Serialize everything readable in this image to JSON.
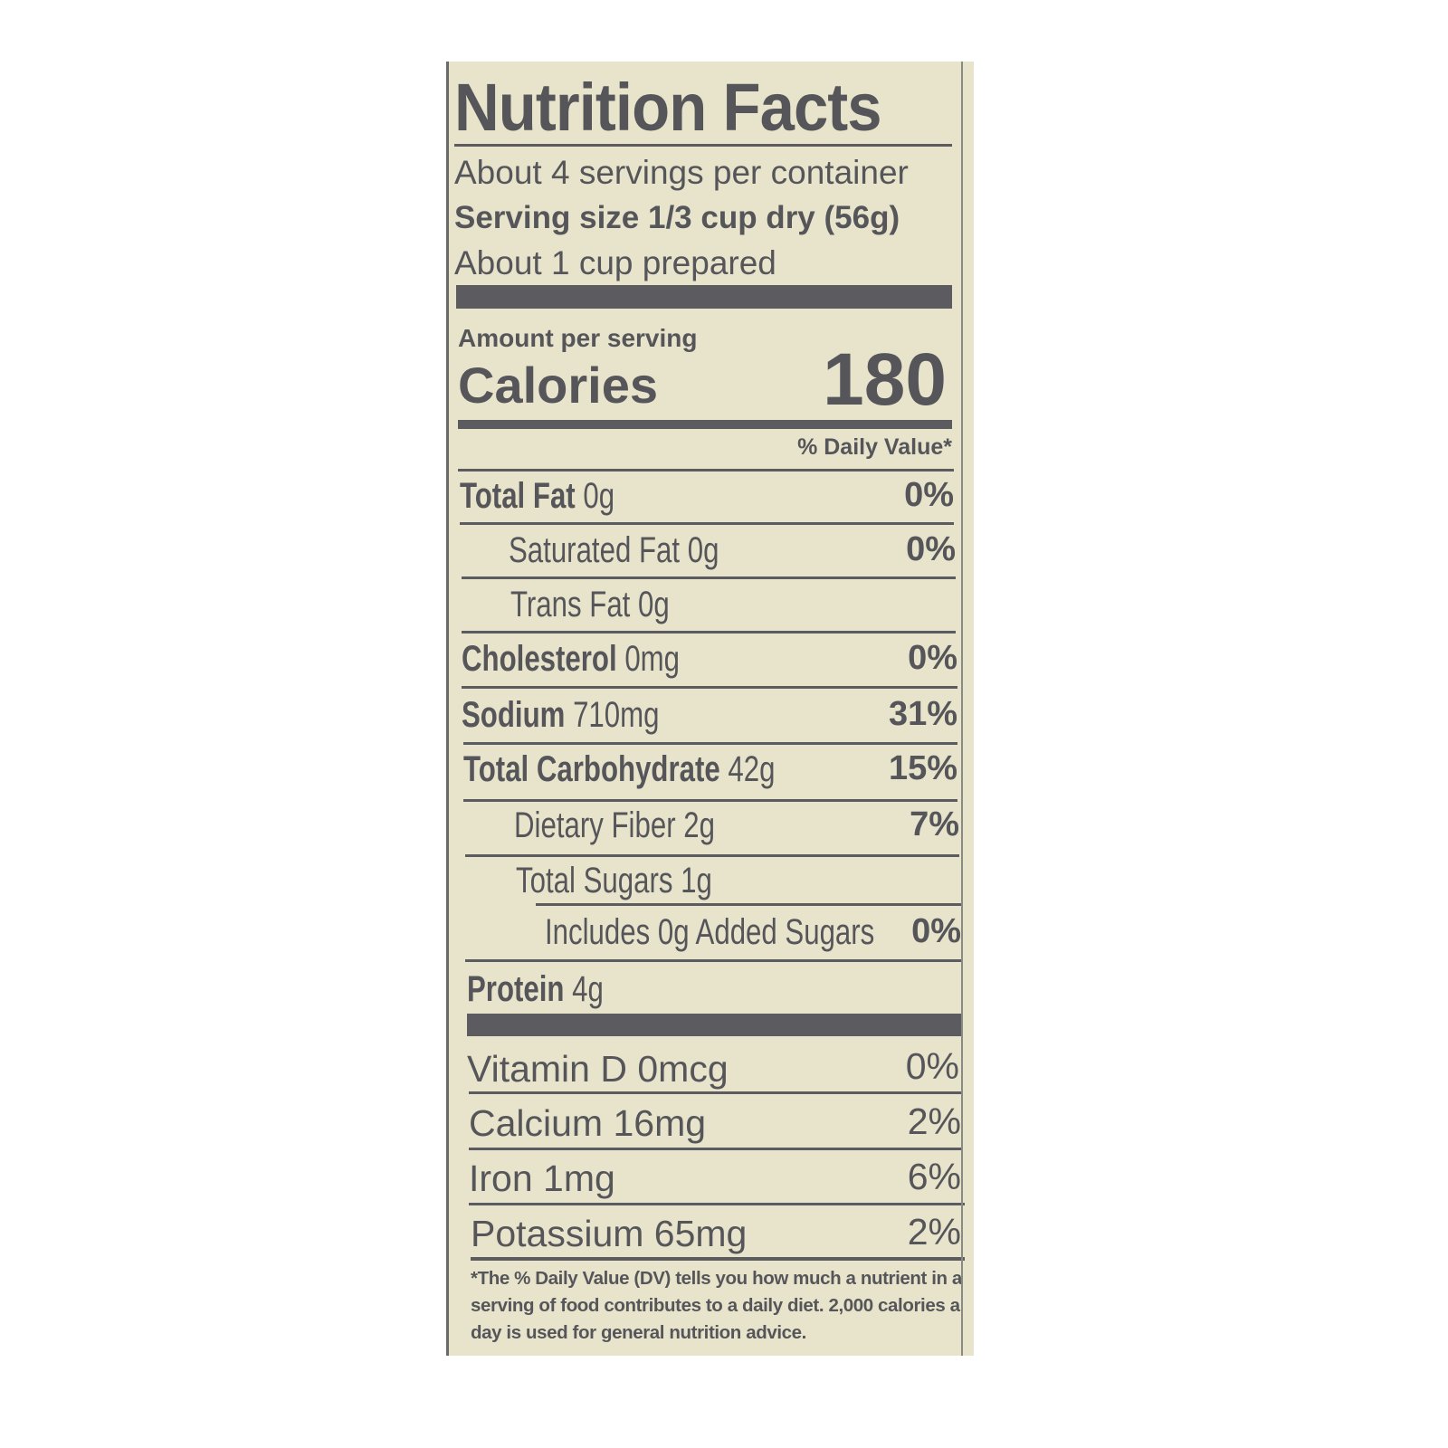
{
  "title": "Nutrition Facts",
  "servings_per_container": "About 4 servings per container",
  "serving_size": "Serving size 1/3 cup dry (56g)",
  "prepared_note": "About 1 cup prepared",
  "amount_per_serving": "Amount per serving",
  "calories_label": "Calories",
  "calories_value": "180",
  "daily_value_header": "% Daily Value*",
  "nutrients": [
    {
      "name": "Total Fat",
      "amount": "0g",
      "dv": "0%"
    },
    {
      "name": "Saturated Fat",
      "amount": "0g",
      "dv": "0%"
    },
    {
      "name": "Trans Fat",
      "amount": "0g",
      "dv": ""
    },
    {
      "name": "Cholesterol",
      "amount": "0mg",
      "dv": "0%"
    },
    {
      "name": "Sodium",
      "amount": "710mg",
      "dv": "31%"
    },
    {
      "name": "Total Carbohydrate",
      "amount": "42g",
      "dv": "15%"
    },
    {
      "name": "Dietary Fiber",
      "amount": "2g",
      "dv": "7%"
    },
    {
      "name": "Total Sugars",
      "amount": "1g",
      "dv": ""
    },
    {
      "name": "Includes 0g Added Sugars",
      "amount": "",
      "dv": "0%"
    },
    {
      "name": "Protein",
      "amount": "4g",
      "dv": ""
    }
  ],
  "vitamins": [
    {
      "label": "Vitamin D 0mcg",
      "dv": "0%"
    },
    {
      "label": "Calcium 16mg",
      "dv": "2%"
    },
    {
      "label": "Iron 1mg",
      "dv": "6%"
    },
    {
      "label": "Potassium 65mg",
      "dv": "2%"
    }
  ],
  "footnote": "*The % Daily Value (DV) tells you how much a nutrient in a serving of food contributes to a daily diet. 2,000 calories a day is used for general nutrition advice.",
  "colors": {
    "label_background": "#e7e4cb",
    "ink": "#56565a"
  }
}
